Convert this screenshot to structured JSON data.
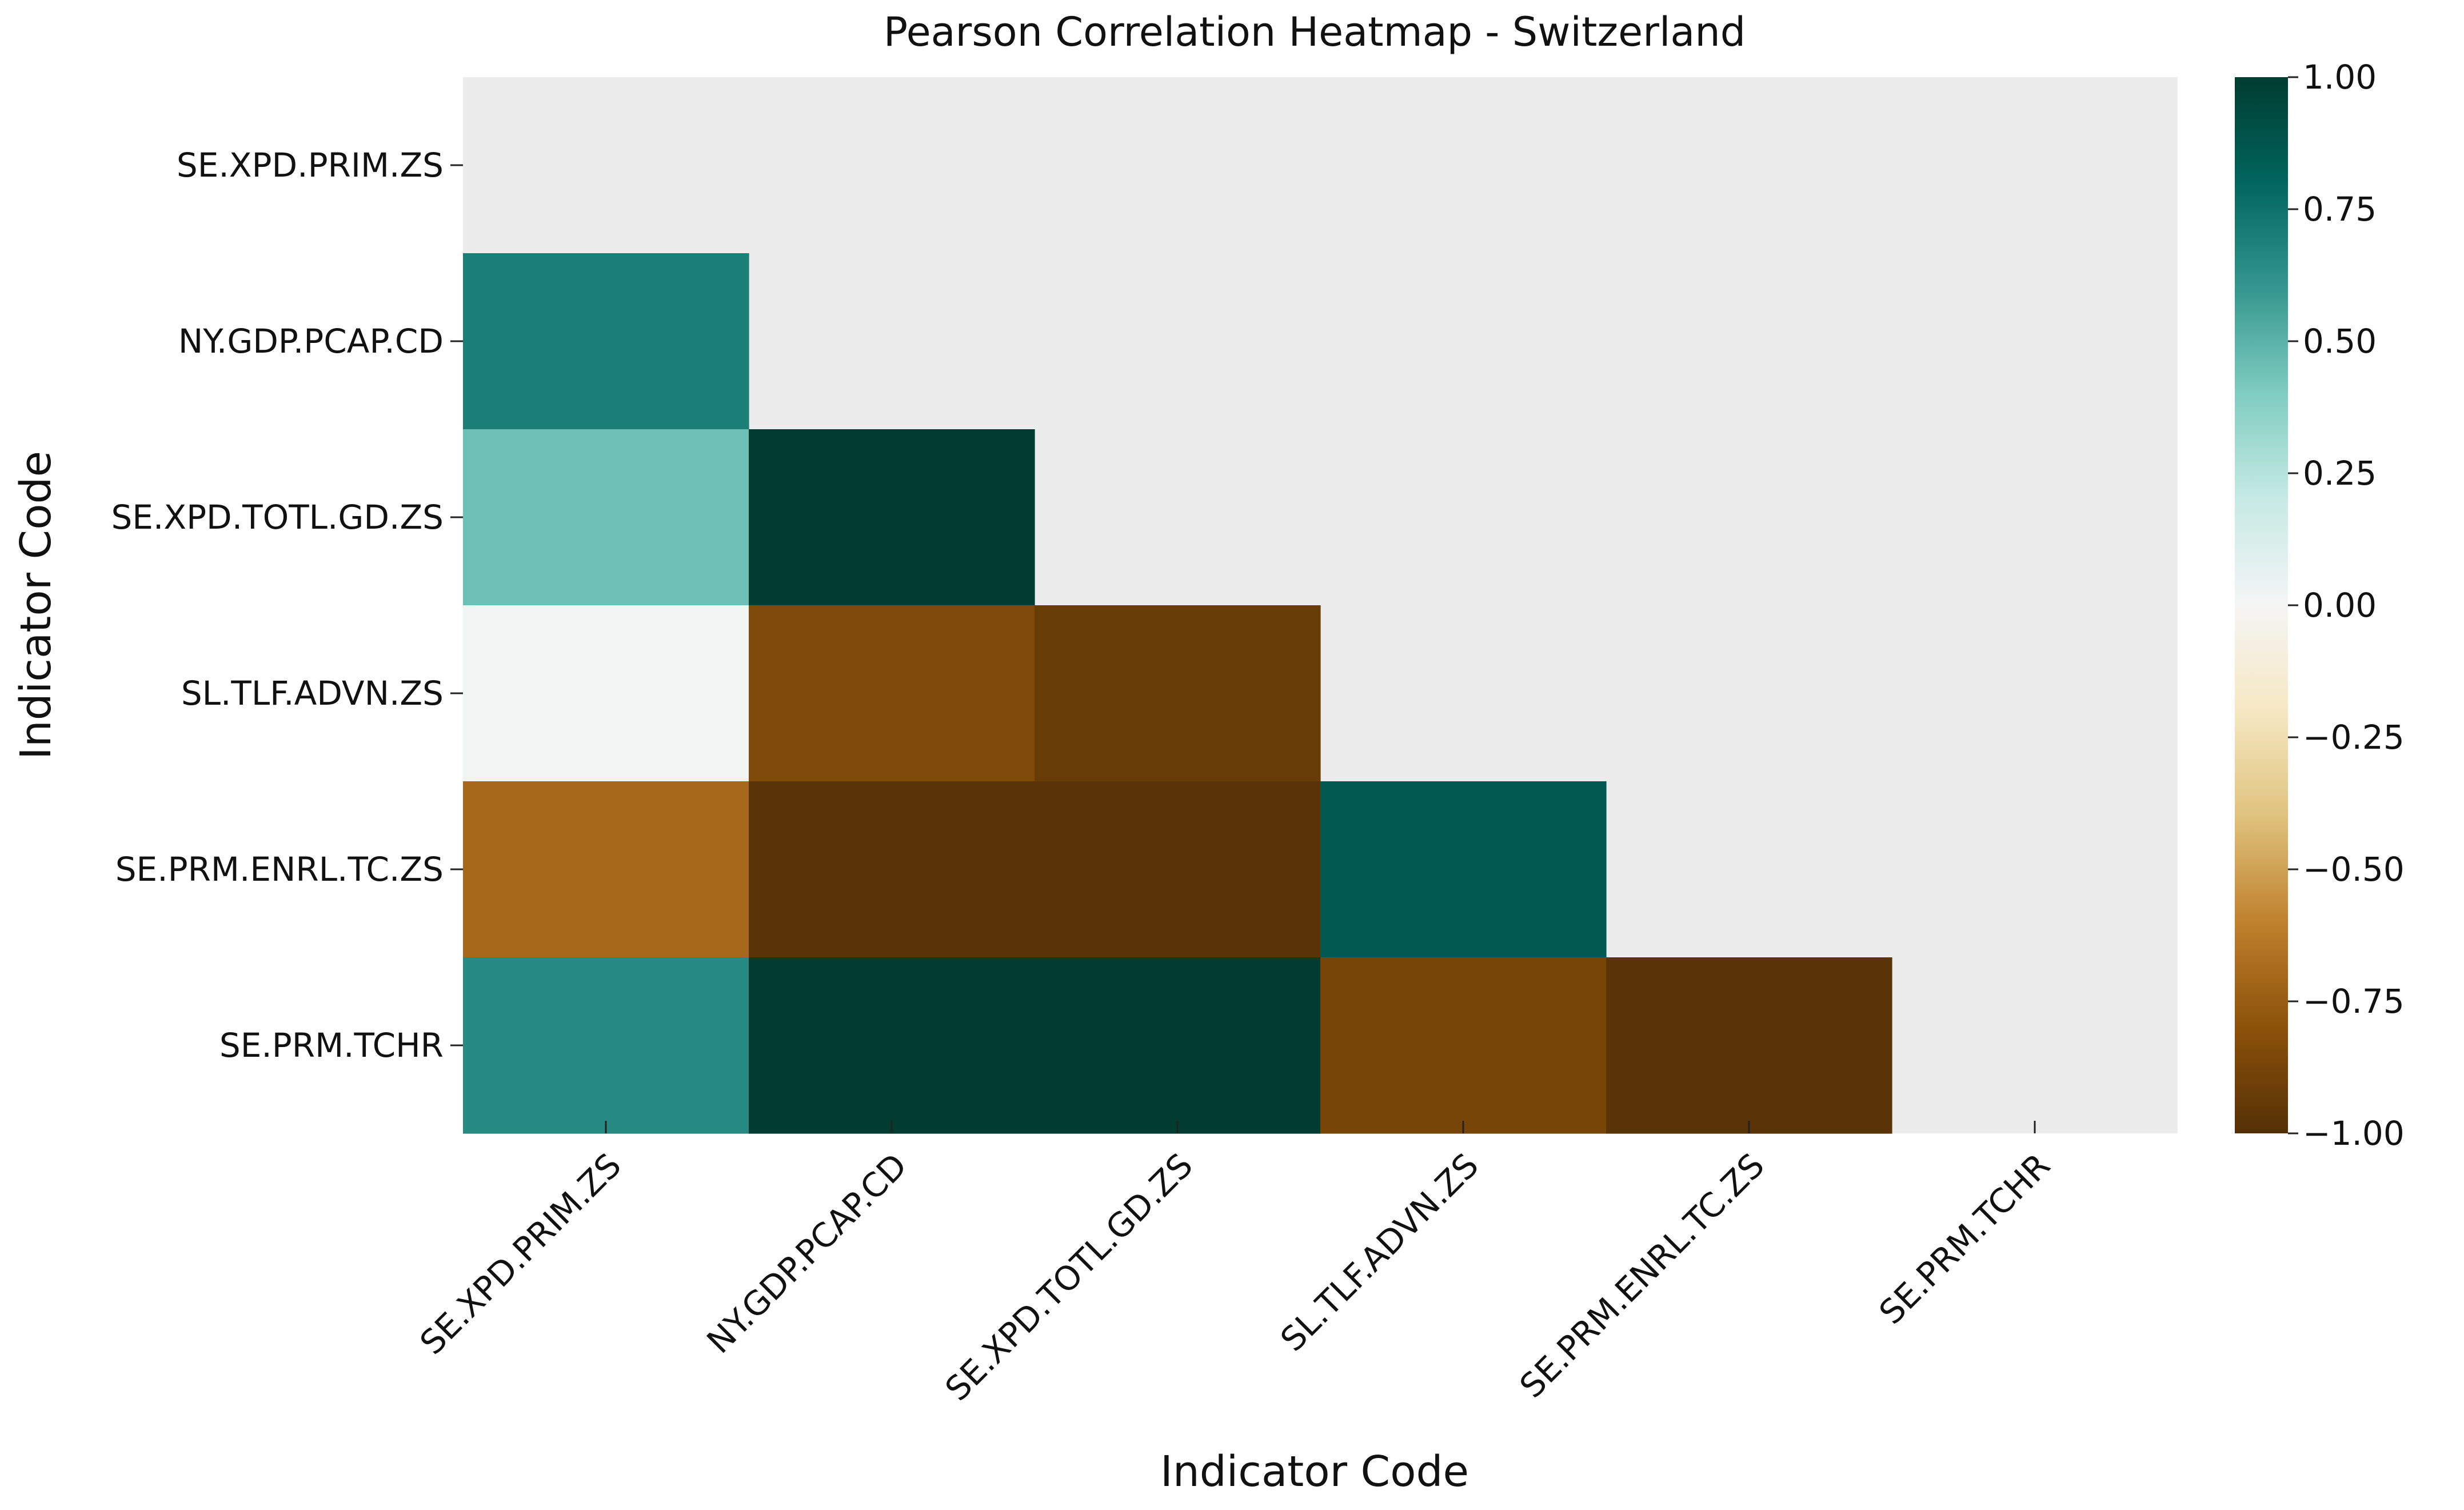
{
  "chart_data": {
    "type": "heatmap",
    "title": "Pearson Correlation Heatmap - Switzerland",
    "xlabel": "Indicator Code",
    "ylabel": "Indicator Code",
    "rows": [
      "SE.XPD.PRIM.ZS",
      "NY.GDP.PCAP.CD",
      "SE.XPD.TOTL.GD.ZS",
      "SL.TLF.ADVN.ZS",
      "SE.PRM.ENRL.TC.ZS",
      "SE.PRM.TCHR"
    ],
    "columns": [
      "SE.XPD.PRIM.ZS",
      "NY.GDP.PCAP.CD",
      "SE.XPD.TOTL.GD.ZS",
      "SL.TLF.ADVN.ZS",
      "SE.PRM.ENRL.TC.ZS",
      "SE.PRM.TCHR"
    ],
    "values": [
      [
        null,
        null,
        null,
        null,
        null,
        null
      ],
      [
        0.7,
        null,
        null,
        null,
        null,
        null
      ],
      [
        0.45,
        1.0,
        null,
        null,
        null,
        null
      ],
      [
        0.02,
        -0.85,
        -0.93,
        null,
        null,
        null
      ],
      [
        -0.7,
        -0.98,
        -0.98,
        0.86,
        null,
        null
      ],
      [
        0.65,
        1.0,
        1.0,
        -0.87,
        -0.98,
        null
      ]
    ],
    "mask": "upper-triangle-and-diagonal",
    "colormap": "BrBG",
    "colorbar": {
      "vmin": -1.0,
      "vmax": 1.0,
      "ticks": [
        "1.00",
        "0.75",
        "0.50",
        "0.25",
        "0.00",
        "−0.25",
        "−0.50",
        "−0.75",
        "−1.00"
      ],
      "tick_values": [
        1.0,
        0.75,
        0.5,
        0.25,
        0.0,
        -0.25,
        -0.5,
        -0.75,
        -1.0
      ]
    },
    "masked_color": "#ececec",
    "grid": false
  }
}
